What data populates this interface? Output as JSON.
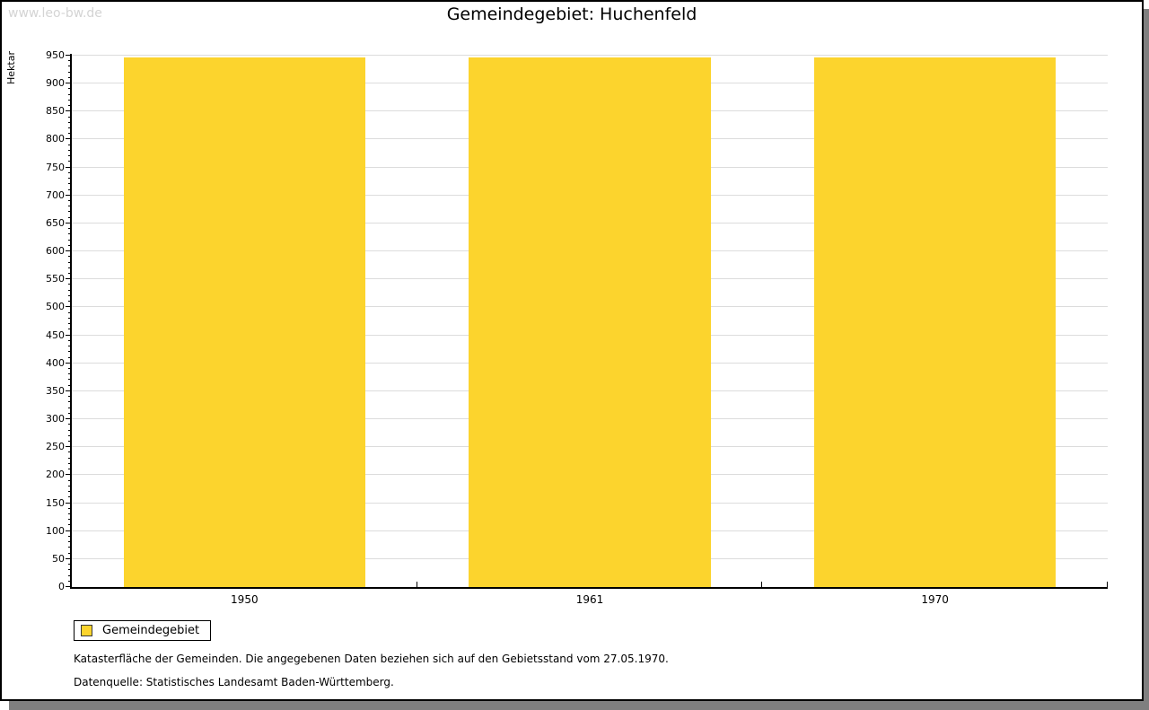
{
  "page": {
    "watermark": "www.leo-bw.de",
    "footnotes": [
      "Katasterfläche der Gemeinden. Die angegebenen Daten beziehen sich auf den Gebietsstand vom 27.05.1970.",
      "Datenquelle: Statistisches Landesamt Baden-Württemberg."
    ]
  },
  "chart_data": {
    "type": "bar",
    "title": "Gemeindegebiet: Huchenfeld",
    "categories": [
      "1950",
      "1961",
      "1970"
    ],
    "series": [
      {
        "name": "Gemeindegebiet",
        "color": "#FCD42D",
        "values": [
          946,
          946,
          946
        ]
      }
    ],
    "xlabel": "",
    "ylabel": "Hektar",
    "ylim": [
      0,
      950
    ],
    "ytick_step": 50,
    "yminor_step": 10,
    "grid": true,
    "gridline_color": "#DCDCDC",
    "legend_position": "bottom-left"
  }
}
